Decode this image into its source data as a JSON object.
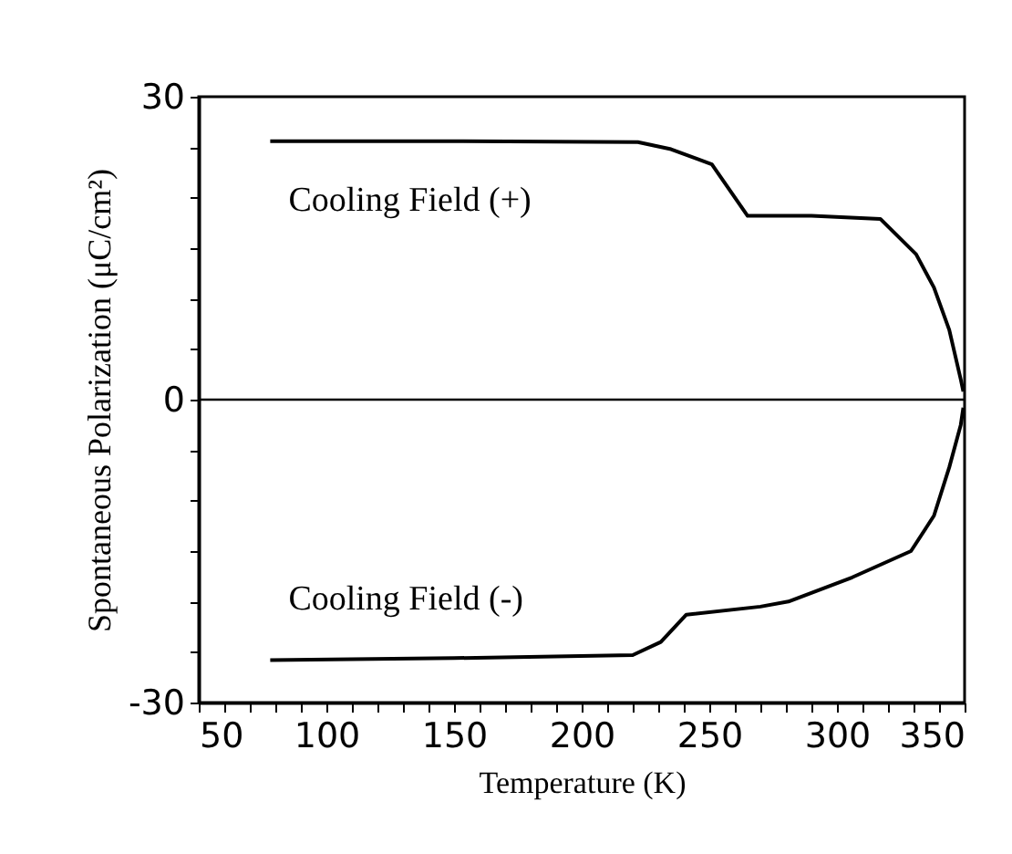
{
  "chart_data": {
    "type": "line",
    "xlabel": "Temperature (K)",
    "ylabel": "Spontaneous Polarization (μC/cm²)",
    "xlim": [
      50,
      350
    ],
    "ylim": [
      -30,
      30
    ],
    "xticks": [
      50,
      {
        "value": 60,
        "label": null
      },
      {
        "value": 70,
        "label": null
      },
      {
        "value": 80,
        "label": null
      },
      {
        "value": 90,
        "label": null
      },
      100,
      {
        "value": 110,
        "label": null
      },
      {
        "value": 120,
        "label": null
      },
      {
        "value": 130,
        "label": null
      },
      {
        "value": 140,
        "label": null
      },
      150,
      {
        "value": 160,
        "label": null
      },
      {
        "value": 170,
        "label": null
      },
      {
        "value": 180,
        "label": null
      },
      {
        "value": 190,
        "label": null
      },
      200,
      {
        "value": 210,
        "label": null
      },
      {
        "value": 220,
        "label": null
      },
      {
        "value": 230,
        "label": null
      },
      {
        "value": 240,
        "label": null
      },
      250,
      {
        "value": 260,
        "label": null
      },
      {
        "value": 270,
        "label": null
      },
      {
        "value": 280,
        "label": null
      },
      {
        "value": 290,
        "label": null
      },
      300,
      {
        "value": 310,
        "label": null
      },
      {
        "value": 320,
        "label": null
      },
      {
        "value": 330,
        "label": null
      },
      {
        "value": 340,
        "label": null
      },
      350
    ],
    "yticks": [
      -30,
      {
        "value": -25,
        "label": null
      },
      {
        "value": -20,
        "label": null
      },
      {
        "value": -15,
        "label": null
      },
      {
        "value": -10,
        "label": null
      },
      {
        "value": -5,
        "label": null
      },
      0,
      {
        "value": 5,
        "label": null
      },
      {
        "value": 10,
        "label": null
      },
      {
        "value": 15,
        "label": null
      },
      {
        "value": 20,
        "label": null
      },
      {
        "value": 25,
        "label": null
      },
      30
    ],
    "grid": false,
    "marker": "none",
    "line_style": "solid",
    "ref_lines": [
      {
        "axis": "y",
        "value": 0,
        "color": "#000000"
      }
    ],
    "series": [
      {
        "name": "Cooling Field (+)",
        "color": "#000000",
        "x": [
          78,
          150,
          222,
          235,
          251,
          265,
          290,
          317,
          331,
          338,
          344,
          348.5,
          349.5
        ],
        "values": [
          25.6,
          25.6,
          25.5,
          24.8,
          23.3,
          18.2,
          18.2,
          17.9,
          14.4,
          11.1,
          6.9,
          2,
          0.8
        ]
      },
      {
        "name": "Cooling Field (-)",
        "color": "#000000",
        "x": [
          78,
          150,
          220,
          231,
          241,
          270,
          281,
          306,
          329,
          338,
          344,
          348.5,
          349.5
        ],
        "values": [
          -25.8,
          -25.6,
          -25.3,
          -24,
          -21.3,
          -20.5,
          -20,
          -17.6,
          -15,
          -11.5,
          -6.7,
          -2.5,
          -0.8
        ]
      }
    ]
  }
}
